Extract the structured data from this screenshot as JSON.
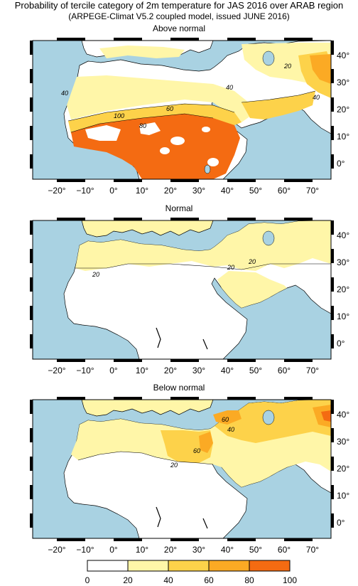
{
  "header": {
    "title": "Probability of tercile category of 2m temperature for JAS 2016 over ARAB region",
    "subtitle": "(ARPEGE-Climat V5.2 coupled model, issued JUNE  2016)"
  },
  "panels": [
    {
      "title": "Above normal"
    },
    {
      "title": "Normal"
    },
    {
      "title": "Below normal"
    }
  ],
  "axes": {
    "lon_labels": [
      "−20°",
      "−10°",
      "0°",
      "10°",
      "20°",
      "30°",
      "40°",
      "50°",
      "60°",
      "70°"
    ],
    "lat_labels": [
      "40°",
      "30°",
      "20°",
      "10°",
      "0°"
    ]
  },
  "contour_labels": {
    "above": [
      "40",
      "60",
      "100",
      "80",
      "40",
      "20",
      "40"
    ],
    "normal": [
      "20",
      "20",
      "20"
    ],
    "below": [
      "20",
      "40",
      "60",
      "60"
    ]
  },
  "colorbar": {
    "ticks": [
      "0",
      "20",
      "40",
      "60",
      "80",
      "100"
    ],
    "colors": [
      "#ffffff",
      "#fff6a8",
      "#fdd24a",
      "#fbaa24",
      "#f46b12"
    ]
  },
  "colors": {
    "sea": "#a9d2e2",
    "land": "#ffffff",
    "c20": "#fff6a8",
    "c40": "#fdd24a",
    "c60": "#fbaa24",
    "c80": "#f46b12"
  }
}
